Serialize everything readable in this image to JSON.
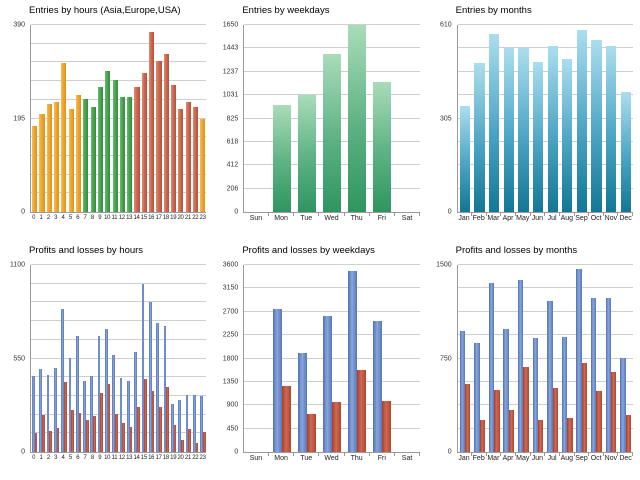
{
  "page": {
    "background": "#ffffff",
    "gridline_color": "#cfcfcf",
    "axis_color": "#9a9a9a"
  },
  "palette": {
    "orange": {
      "dir": "h",
      "stops": [
        "#f6bd5e",
        "#efa52c",
        "#df931f"
      ]
    },
    "green1": {
      "dir": "h",
      "stops": [
        "#6cba72",
        "#46a54e",
        "#348c3c"
      ]
    },
    "red1": {
      "dir": "h",
      "stops": [
        "#dc9071",
        "#cb6a52",
        "#b8503c"
      ]
    },
    "green2": {
      "dir": "v",
      "stops": [
        "#a9dcb9",
        "#5cb183",
        "#2f9560"
      ]
    },
    "cyan": {
      "dir": "v",
      "stops": [
        "#abdeee",
        "#4ba4c4",
        "#137795"
      ]
    },
    "blue": {
      "dir": "h",
      "stops": [
        "#4d71b4",
        "#8aa5dc",
        "#5577bb"
      ]
    },
    "red2": {
      "dir": "h",
      "stops": [
        "#ab3d2b",
        "#cd6a51",
        "#b2452f"
      ]
    }
  },
  "chart_data": [
    {
      "type": "bar",
      "title": "Entries by hours (Asia,Europe,USA)",
      "categories": [
        "0",
        "1",
        "2",
        "3",
        "4",
        "5",
        "6",
        "7",
        "8",
        "9",
        "10",
        "11",
        "12",
        "13",
        "14",
        "15",
        "16",
        "17",
        "18",
        "19",
        "20",
        "21",
        "22",
        "23"
      ],
      "values": [
        180,
        205,
        225,
        230,
        310,
        215,
        245,
        235,
        220,
        260,
        295,
        275,
        240,
        240,
        260,
        290,
        375,
        315,
        330,
        265,
        215,
        230,
        220,
        195
      ],
      "bar_colors": [
        "orange",
        "orange",
        "orange",
        "orange",
        "orange",
        "orange",
        "orange",
        "green1",
        "green1",
        "green1",
        "green1",
        "green1",
        "green1",
        "green1",
        "red1",
        "red1",
        "red1",
        "red1",
        "red1",
        "red1",
        "red1",
        "red1",
        "red1",
        "orange"
      ],
      "ylim": [
        0,
        390
      ],
      "yticks": [
        {
          "value": 390,
          "label": "390"
        },
        {
          "value": 195,
          "label": "195"
        },
        {
          "value": 0,
          "label": "0"
        }
      ],
      "gridline_intervals": 10,
      "x_ticks": false,
      "xlabel_size": "small",
      "grid": true,
      "legend": false
    },
    {
      "type": "bar",
      "title": "Entries by weekdays",
      "categories": [
        "Sun",
        "Mon",
        "Tue",
        "Wed",
        "Thu",
        "Fri",
        "Sat"
      ],
      "values": [
        0,
        940,
        1030,
        1390,
        1650,
        1150,
        0
      ],
      "color": "green2",
      "ylim": [
        0,
        1650
      ],
      "yticks": [
        {
          "value": 1650,
          "label": "1650"
        },
        {
          "value": 1443,
          "label": "1443"
        },
        {
          "value": 1237,
          "label": "1237"
        },
        {
          "value": 1031,
          "label": "1031"
        },
        {
          "value": 825,
          "label": "825"
        },
        {
          "value": 618,
          "label": "618"
        },
        {
          "value": 412,
          "label": "412"
        },
        {
          "value": 206,
          "label": "206"
        },
        {
          "value": 0,
          "label": "0"
        }
      ],
      "gridline_intervals": 8,
      "x_ticks": true,
      "xlabel_size": "normal",
      "grid": true,
      "legend": false
    },
    {
      "type": "bar",
      "title": "Entries by months",
      "categories": [
        "Jan",
        "Feb",
        "Mar",
        "Apr",
        "May",
        "Jun",
        "Jul",
        "Aug",
        "Sep",
        "Oct",
        "Nov",
        "Dec"
      ],
      "values": [
        345,
        485,
        580,
        535,
        535,
        490,
        540,
        500,
        595,
        560,
        540,
        390
      ],
      "color": "cyan",
      "ylim": [
        0,
        610
      ],
      "yticks": [
        {
          "value": 610,
          "label": "610"
        },
        {
          "value": 305,
          "label": "305"
        },
        {
          "value": 0,
          "label": "0"
        }
      ],
      "gridline_intervals": 8,
      "x_ticks": true,
      "xlabel_size": "normal",
      "grid": true,
      "legend": false
    },
    {
      "type": "grouped-bar",
      "title": "Profits and losses by hours",
      "categories": [
        "0",
        "1",
        "2",
        "3",
        "4",
        "5",
        "6",
        "7",
        "8",
        "9",
        "10",
        "11",
        "12",
        "13",
        "14",
        "15",
        "16",
        "17",
        "18",
        "19",
        "20",
        "21",
        "22",
        "23"
      ],
      "series": [
        {
          "name": "profits",
          "color": "blue",
          "values": [
            445,
            490,
            455,
            495,
            840,
            555,
            685,
            420,
            445,
            685,
            725,
            570,
            435,
            420,
            590,
            990,
            880,
            760,
            740,
            280,
            305,
            335,
            335,
            330
          ]
        },
        {
          "name": "losses",
          "color": "red2",
          "values": [
            110,
            215,
            125,
            140,
            410,
            250,
            230,
            190,
            210,
            345,
            400,
            225,
            170,
            150,
            265,
            430,
            360,
            265,
            385,
            160,
            70,
            135,
            55,
            120
          ]
        }
      ],
      "ylim": [
        0,
        1100
      ],
      "yticks": [
        {
          "value": 1100,
          "label": "1100"
        },
        {
          "value": 550,
          "label": "550"
        },
        {
          "value": 0,
          "label": "0"
        }
      ],
      "gridline_intervals": 10,
      "x_ticks": false,
      "xlabel_size": "small",
      "grid": true,
      "legend": false
    },
    {
      "type": "grouped-bar",
      "title": "Profits and losses by weekdays",
      "categories": [
        "Sun",
        "Mon",
        "Tue",
        "Wed",
        "Thu",
        "Fri",
        "Sat"
      ],
      "series": [
        {
          "name": "profits",
          "color": "blue",
          "values": [
            0,
            2760,
            1910,
            2610,
            3490,
            2530,
            0
          ]
        },
        {
          "name": "losses",
          "color": "red2",
          "values": [
            0,
            1270,
            740,
            960,
            1580,
            990,
            0
          ]
        }
      ],
      "ylim": [
        0,
        3600
      ],
      "yticks": [
        {
          "value": 3600,
          "label": "3600"
        },
        {
          "value": 3150,
          "label": "3150"
        },
        {
          "value": 2700,
          "label": "2700"
        },
        {
          "value": 2250,
          "label": "2250"
        },
        {
          "value": 1800,
          "label": "1800"
        },
        {
          "value": 1350,
          "label": "1350"
        },
        {
          "value": 900,
          "label": "900"
        },
        {
          "value": 450,
          "label": "450"
        },
        {
          "value": 0,
          "label": "0"
        }
      ],
      "gridline_intervals": 8,
      "x_ticks": true,
      "xlabel_size": "normal",
      "grid": true,
      "legend": false
    },
    {
      "type": "grouped-bar",
      "title": "Profits and losses by months",
      "categories": [
        "Jan",
        "Feb",
        "Mar",
        "Apr",
        "May",
        "Jun",
        "Jul",
        "Aug",
        "Sep",
        "Oct",
        "Nov",
        "Dec"
      ],
      "series": [
        {
          "name": "profits",
          "color": "blue",
          "values": [
            970,
            875,
            1355,
            990,
            1380,
            915,
            1215,
            925,
            1470,
            1235,
            1235,
            755
          ]
        },
        {
          "name": "losses",
          "color": "red2",
          "values": [
            545,
            255,
            500,
            340,
            685,
            260,
            510,
            275,
            715,
            490,
            640,
            300
          ]
        }
      ],
      "ylim": [
        0,
        1500
      ],
      "yticks": [
        {
          "value": 1500,
          "label": "1500"
        },
        {
          "value": 750,
          "label": "750"
        },
        {
          "value": 0,
          "label": "0"
        }
      ],
      "gridline_intervals": 8,
      "x_ticks": true,
      "xlabel_size": "normal",
      "grid": true,
      "legend": false
    }
  ]
}
